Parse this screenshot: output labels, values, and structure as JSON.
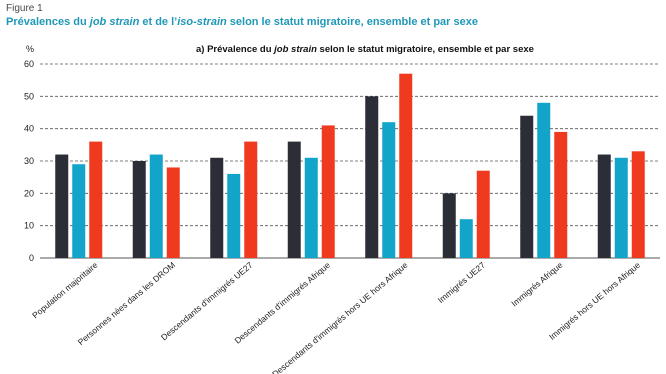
{
  "figure_label": "Figure 1",
  "title": {
    "part1": "Prévalences du ",
    "em1": "job strain",
    "part2": " et de l’",
    "em2": "iso-strain",
    "part3": " selon le statut migratoire, ensemble et par sexe"
  },
  "colors": {
    "title": "#1f98b8",
    "series": [
      "#2b2e37",
      "#12a4c9",
      "#f03a1f"
    ],
    "gridline": "#555555"
  },
  "chart_data": {
    "type": "bar",
    "panel_title": {
      "prefix": "a) Prévalence du ",
      "em": "job strain",
      "suffix": " selon le statut migratoire, ensemble et par sexe"
    },
    "y_unit": "%",
    "ylim": [
      0,
      60
    ],
    "yticks": [
      0,
      10,
      20,
      30,
      40,
      50,
      60
    ],
    "grid": "horizontal-dashed",
    "legend": "none",
    "categories": [
      "Population majoritaire",
      "Personnes nées dans les DROM",
      "Descendants d'immigrés UE27",
      "Descendants d'immigrés Afrique",
      "Descendants d'immigrés hors UE hors Afrique",
      "Immigrés UE27",
      "Immigrés Afrique",
      "Immigrés hors UE hors Afrique"
    ],
    "series": [
      {
        "values": [
          32,
          30,
          31,
          36,
          50,
          20,
          44,
          32
        ]
      },
      {
        "values": [
          29,
          32,
          26,
          31,
          42,
          12,
          48,
          31
        ]
      },
      {
        "values": [
          36,
          28,
          36,
          41,
          57,
          27,
          39,
          33
        ]
      }
    ]
  }
}
